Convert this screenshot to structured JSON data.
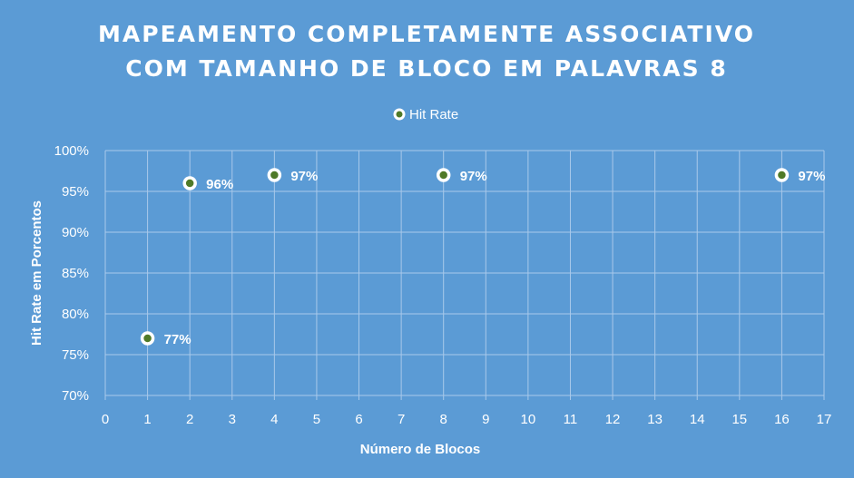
{
  "chart_data": {
    "type": "scatter",
    "title_lines": [
      "MAPEAMENTO COMPLETAMENTE ASSOCIATIVO",
      "COM TAMANHO DE BLOCO EM PALAVRAS 8"
    ],
    "xlabel": "Número de Blocos",
    "ylabel": "Hit Rate em Porcentos",
    "series": [
      {
        "name": "Hit Rate",
        "x": [
          1,
          2,
          4,
          8,
          16
        ],
        "y": [
          77,
          96,
          97,
          97,
          97
        ],
        "labels": [
          "77%",
          "96%",
          "97%",
          "97%",
          "97%"
        ]
      }
    ],
    "xlim": [
      0,
      17
    ],
    "ylim": [
      70,
      100
    ],
    "x_ticks": [
      "0",
      "1",
      "2",
      "3",
      "4",
      "5",
      "6",
      "7",
      "8",
      "9",
      "10",
      "11",
      "12",
      "13",
      "14",
      "15",
      "16",
      "17"
    ],
    "y_ticks": [
      "70%",
      "75%",
      "80%",
      "85%",
      "90%",
      "95%",
      "100%"
    ],
    "grid": true,
    "legend_position": "top",
    "colors": {
      "background": "#5b9bd5",
      "gridline": "#a9c9ea",
      "marker_fill": "#4f7a28",
      "marker_edge": "#ffffff",
      "text": "#ffffff"
    }
  }
}
